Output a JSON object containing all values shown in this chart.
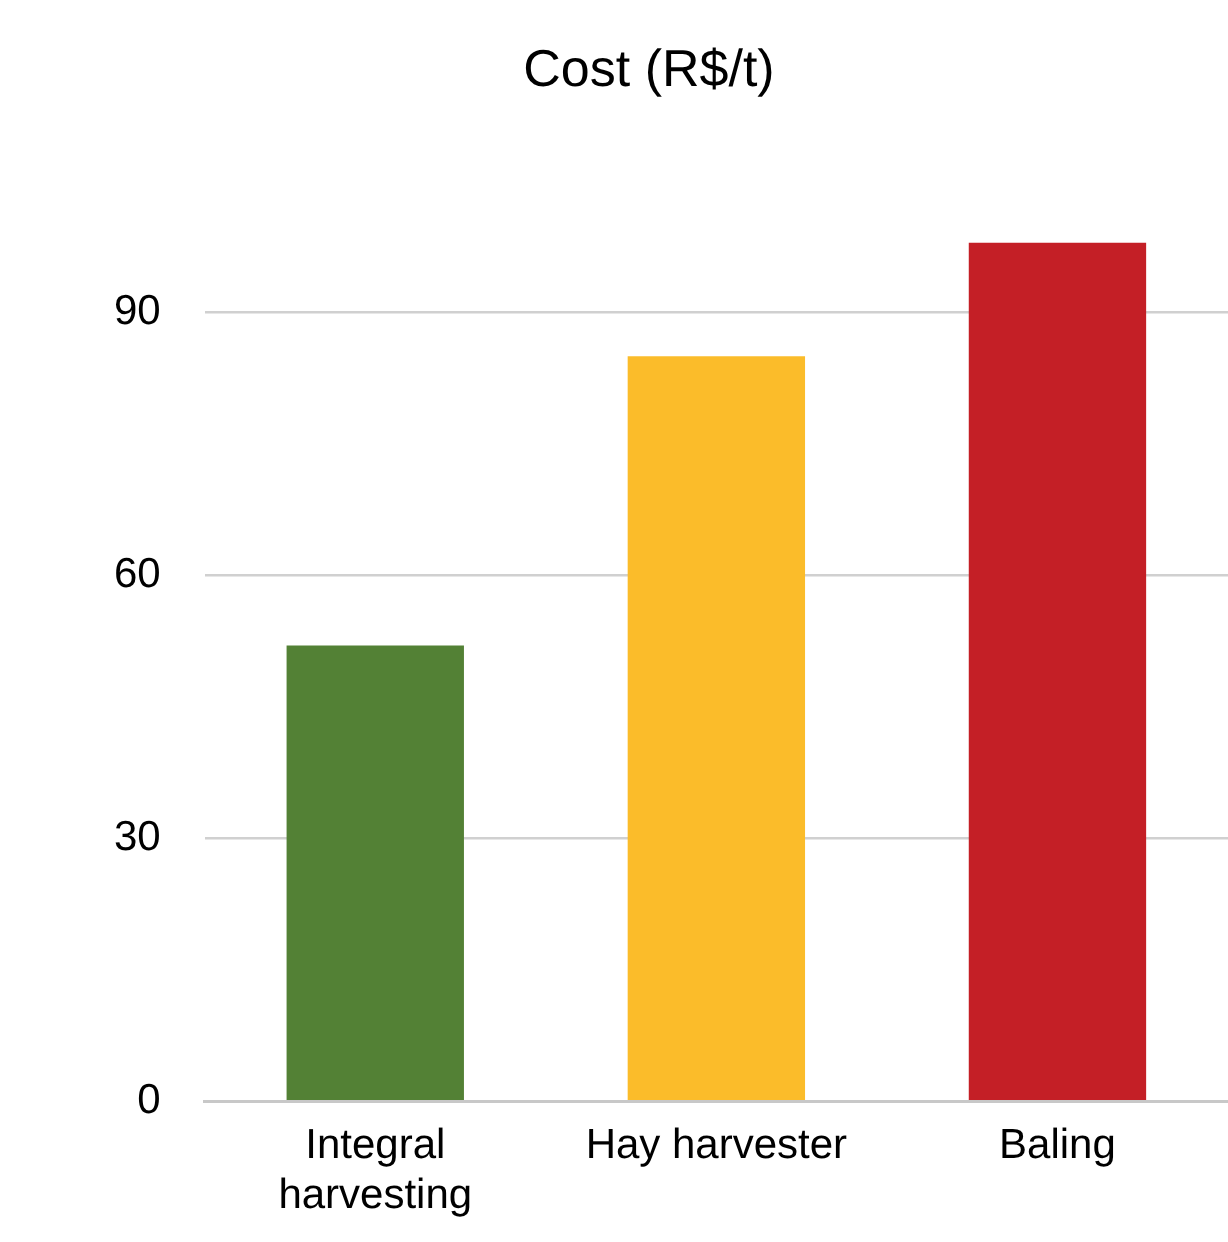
{
  "chart_data": {
    "type": "bar",
    "title": "Cost (R$/t)",
    "categories": [
      "Integral harvesting",
      "Hay harvester",
      "Baling"
    ],
    "values": [
      52,
      85,
      98
    ],
    "colors": [
      "#538135",
      "#fbbc2a",
      "#c41f26"
    ],
    "ylim": [
      0,
      98
    ],
    "yticks": [
      0,
      30,
      60,
      90
    ],
    "grid": "y",
    "legend": false
  }
}
